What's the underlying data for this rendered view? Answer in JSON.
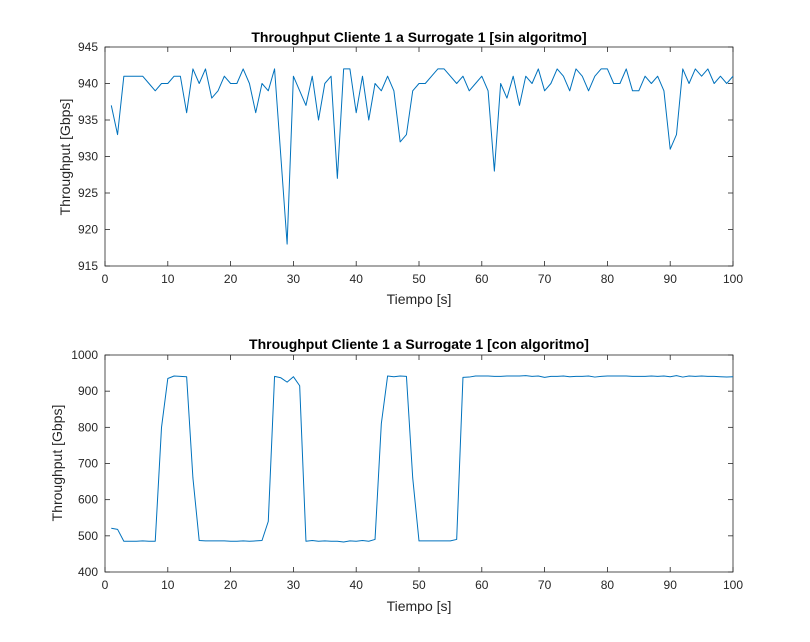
{
  "chart_data": [
    {
      "type": "line",
      "title": "Throughput Cliente 1 a Surrogate 1 [sin algoritmo]",
      "xlabel": "Tiempo [s]",
      "ylabel": "Throughput [Gbps]",
      "xlim": [
        0,
        100
      ],
      "ylim": [
        915,
        945
      ],
      "xticks": [
        0,
        10,
        20,
        30,
        40,
        50,
        60,
        70,
        80,
        90,
        100
      ],
      "yticks": [
        915,
        920,
        925,
        930,
        935,
        940,
        945
      ],
      "grid": false,
      "color": "#0072BD",
      "series": [
        {
          "x": [
            1,
            2,
            3,
            4,
            5,
            6,
            7,
            8,
            9,
            10,
            11,
            12,
            13,
            14,
            15,
            16,
            17,
            18,
            19,
            20,
            21,
            22,
            23,
            24,
            25,
            26,
            27,
            28,
            29,
            30,
            31,
            32,
            33,
            34,
            35,
            36,
            37,
            38,
            39,
            40,
            41,
            42,
            43,
            44,
            45,
            46,
            47,
            48,
            49,
            50,
            51,
            52,
            53,
            54,
            55,
            56,
            57,
            58,
            59,
            60,
            61,
            62,
            63,
            64,
            65,
            66,
            67,
            68,
            69,
            70,
            71,
            72,
            73,
            74,
            75,
            76,
            77,
            78,
            79,
            80,
            81,
            82,
            83,
            84,
            85,
            86,
            87,
            88,
            89,
            90,
            91,
            92,
            93,
            94,
            95,
            96,
            97,
            98,
            99,
            100
          ],
          "y": [
            937,
            933,
            941,
            941,
            941,
            941,
            940,
            939,
            940,
            940,
            941,
            941,
            936,
            942,
            940,
            942,
            938,
            939,
            941,
            940,
            940,
            942,
            940,
            936,
            940,
            939,
            942,
            930,
            918,
            941,
            939,
            937,
            941,
            935,
            940,
            941,
            927,
            942,
            942,
            936,
            941,
            935,
            940,
            939,
            941,
            939,
            932,
            933,
            939,
            940,
            940,
            941,
            942,
            942,
            941,
            940,
            941,
            939,
            940,
            941,
            939,
            928,
            940,
            938,
            941,
            937,
            941,
            940,
            942,
            939,
            940,
            942,
            941,
            939,
            942,
            941,
            939,
            941,
            942,
            942,
            940,
            940,
            942,
            939,
            939,
            941,
            940,
            941,
            939,
            931,
            933,
            942,
            940,
            942,
            941,
            942,
            940,
            941,
            940,
            941
          ]
        }
      ]
    },
    {
      "type": "line",
      "title": "Throughput Cliente 1 a Surrogate 1 [con algoritmo]",
      "xlabel": "Tiempo [s]",
      "ylabel": "Throughput [Gbps]",
      "xlim": [
        0,
        100
      ],
      "ylim": [
        400,
        1000
      ],
      "xticks": [
        0,
        10,
        20,
        30,
        40,
        50,
        60,
        70,
        80,
        90,
        100
      ],
      "yticks": [
        400,
        500,
        600,
        700,
        800,
        900,
        1000
      ],
      "grid": false,
      "color": "#0072BD",
      "series": [
        {
          "x": [
            1,
            2,
            3,
            4,
            5,
            6,
            7,
            8,
            9,
            10,
            11,
            12,
            13,
            14,
            15,
            16,
            17,
            18,
            19,
            20,
            21,
            22,
            23,
            24,
            25,
            26,
            27,
            28,
            29,
            30,
            31,
            32,
            33,
            34,
            35,
            36,
            37,
            38,
            39,
            40,
            41,
            42,
            43,
            44,
            45,
            46,
            47,
            48,
            49,
            50,
            51,
            52,
            53,
            54,
            55,
            56,
            57,
            58,
            59,
            60,
            61,
            62,
            63,
            64,
            65,
            66,
            67,
            68,
            69,
            70,
            71,
            72,
            73,
            74,
            75,
            76,
            77,
            78,
            79,
            80,
            81,
            82,
            83,
            84,
            85,
            86,
            87,
            88,
            89,
            90,
            91,
            92,
            93,
            94,
            95,
            96,
            97,
            98,
            99,
            100
          ],
          "y": [
            521,
            518,
            485,
            485,
            485,
            486,
            485,
            485,
            800,
            935,
            942,
            941,
            940,
            660,
            487,
            486,
            486,
            486,
            486,
            485,
            485,
            486,
            485,
            486,
            487,
            540,
            941,
            937,
            925,
            940,
            915,
            485,
            487,
            485,
            486,
            485,
            485,
            483,
            486,
            485,
            487,
            485,
            490,
            810,
            942,
            940,
            942,
            941,
            660,
            486,
            486,
            486,
            486,
            486,
            486,
            490,
            938,
            939,
            942,
            942,
            942,
            941,
            941,
            942,
            942,
            942,
            943,
            941,
            942,
            938,
            941,
            941,
            942,
            940,
            941,
            941,
            942,
            939,
            941,
            942,
            942,
            942,
            942,
            941,
            941,
            941,
            942,
            941,
            942,
            940,
            943,
            939,
            942,
            941,
            942,
            941,
            941,
            940,
            939,
            940
          ]
        }
      ]
    }
  ]
}
